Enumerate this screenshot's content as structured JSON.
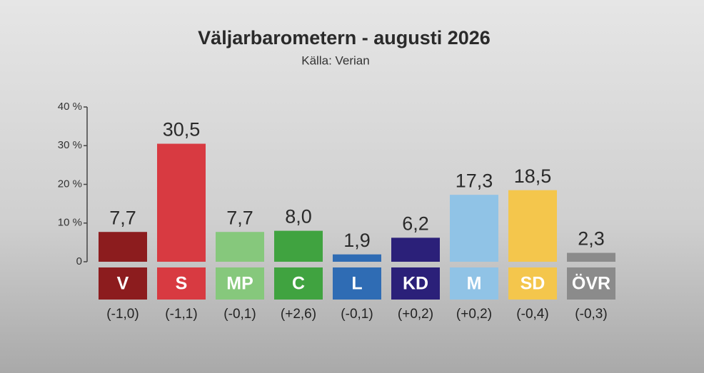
{
  "chart_data": {
    "type": "bar",
    "title": "Väljarbarometern - augusti 2026",
    "subtitle": "Källa: Verian",
    "categories": [
      "V",
      "S",
      "MP",
      "C",
      "L",
      "KD",
      "M",
      "SD",
      "ÖVR"
    ],
    "values": [
      7.7,
      30.5,
      7.7,
      8.0,
      1.9,
      6.2,
      17.3,
      18.5,
      2.3
    ],
    "value_labels": [
      "7,7",
      "30,5",
      "7,7",
      "8,0",
      "1,9",
      "6,2",
      "17,3",
      "18,5",
      "2,3"
    ],
    "change_labels": [
      "(-1,0)",
      "(-1,1)",
      "(-0,1)",
      "(+2,6)",
      "(-0,1)",
      "(+0,2)",
      "(+0,2)",
      "(-0,4)",
      "(-0,3)"
    ],
    "colors": [
      "#8c1c1e",
      "#d83a41",
      "#86c87c",
      "#40a340",
      "#2f6cb4",
      "#2b2079",
      "#90c3e6",
      "#f4c64c",
      "#8b8b8b"
    ],
    "ylim": [
      0,
      40
    ],
    "yticks": [
      0,
      {
        "value": 10,
        "label": "10 %"
      },
      {
        "value": 20,
        "label": "20 %"
      },
      {
        "value": 30,
        "label": "30 %"
      },
      {
        "value": 40,
        "label": "40 %"
      }
    ]
  }
}
